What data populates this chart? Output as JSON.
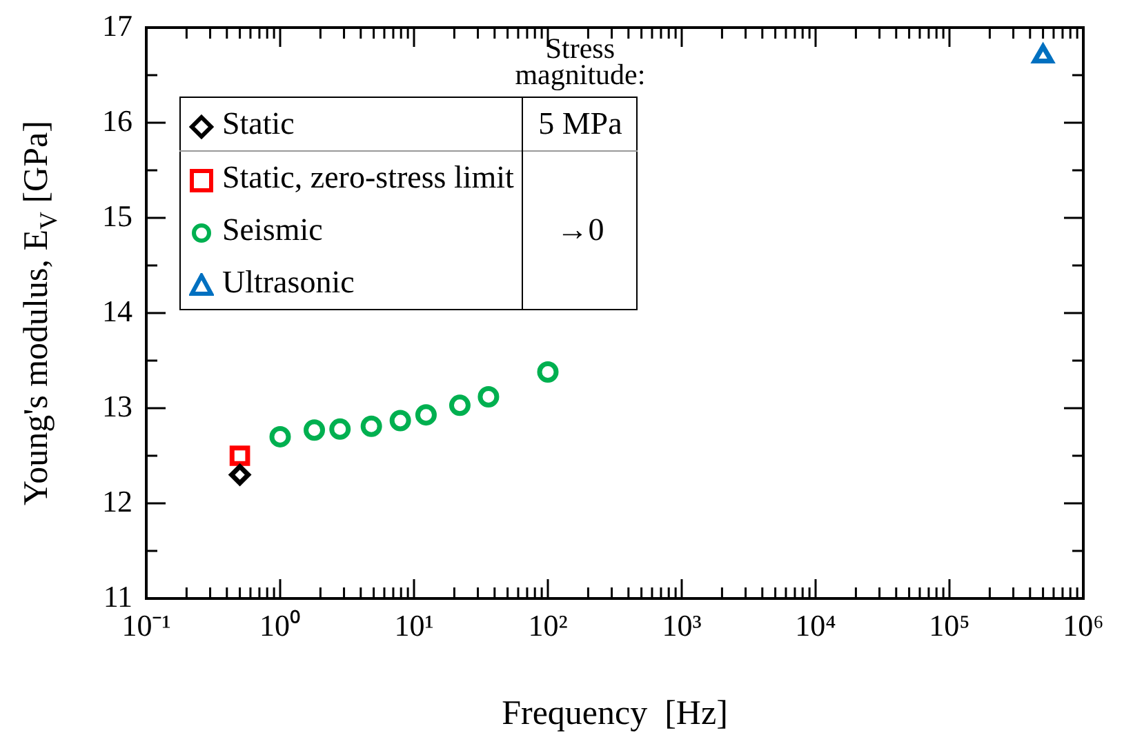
{
  "chart_data": {
    "type": "scatter",
    "xlabel": "Frequency  [Hz]",
    "ylabel": "Young's modulus, E$_{V}$ [GPa]",
    "log": "x",
    "xlim": [
      0.1,
      1000000
    ],
    "ylim": [
      11,
      17
    ],
    "xticks": [
      {
        "value": 0.1,
        "label": "10⁻¹"
      },
      {
        "value": 0.2,
        "label": null
      },
      {
        "value": 0.3,
        "label": null
      },
      {
        "value": 0.4,
        "label": null
      },
      {
        "value": 0.5,
        "label": null
      },
      {
        "value": 0.6,
        "label": null
      },
      {
        "value": 0.7,
        "label": null
      },
      {
        "value": 0.8,
        "label": null
      },
      {
        "value": 0.9,
        "label": null
      },
      {
        "value": 1,
        "label": "10⁰"
      },
      {
        "value": 2,
        "label": null
      },
      {
        "value": 3,
        "label": null
      },
      {
        "value": 4,
        "label": null
      },
      {
        "value": 5,
        "label": null
      },
      {
        "value": 6,
        "label": null
      },
      {
        "value": 7,
        "label": null
      },
      {
        "value": 8,
        "label": null
      },
      {
        "value": 9,
        "label": null
      },
      {
        "value": 10,
        "label": "10¹"
      },
      {
        "value": 20,
        "label": null
      },
      {
        "value": 30,
        "label": null
      },
      {
        "value": 40,
        "label": null
      },
      {
        "value": 50,
        "label": null
      },
      {
        "value": 60,
        "label": null
      },
      {
        "value": 70,
        "label": null
      },
      {
        "value": 80,
        "label": null
      },
      {
        "value": 90,
        "label": null
      },
      {
        "value": 100,
        "label": "10²"
      },
      {
        "value": 200,
        "label": null
      },
      {
        "value": 300,
        "label": null
      },
      {
        "value": 400,
        "label": null
      },
      {
        "value": 500,
        "label": null
      },
      {
        "value": 600,
        "label": null
      },
      {
        "value": 700,
        "label": null
      },
      {
        "value": 800,
        "label": null
      },
      {
        "value": 900,
        "label": null
      },
      {
        "value": 1000,
        "label": "10³"
      },
      {
        "value": 2000,
        "label": null
      },
      {
        "value": 3000,
        "label": null
      },
      {
        "value": 4000,
        "label": null
      },
      {
        "value": 5000,
        "label": null
      },
      {
        "value": 6000,
        "label": null
      },
      {
        "value": 7000,
        "label": null
      },
      {
        "value": 8000,
        "label": null
      },
      {
        "value": 9000,
        "label": null
      },
      {
        "value": 10000,
        "label": "10⁴"
      },
      {
        "value": 20000,
        "label": null
      },
      {
        "value": 30000,
        "label": null
      },
      {
        "value": 40000,
        "label": null
      },
      {
        "value": 50000,
        "label": null
      },
      {
        "value": 60000,
        "label": null
      },
      {
        "value": 70000,
        "label": null
      },
      {
        "value": 80000,
        "label": null
      },
      {
        "value": 90000,
        "label": null
      },
      {
        "value": 100000,
        "label": "10⁵"
      },
      {
        "value": 200000,
        "label": null
      },
      {
        "value": 300000,
        "label": null
      },
      {
        "value": 400000,
        "label": null
      },
      {
        "value": 500000,
        "label": null
      },
      {
        "value": 600000,
        "label": null
      },
      {
        "value": 700000,
        "label": null
      },
      {
        "value": 800000,
        "label": null
      },
      {
        "value": 900000,
        "label": null
      },
      {
        "value": 1000000,
        "label": "10⁶"
      }
    ],
    "yticks": [
      11,
      {
        "value": 11.5,
        "label": null
      },
      12,
      {
        "value": 12.5,
        "label": null
      },
      13,
      {
        "value": 13.5,
        "label": null
      },
      14,
      {
        "value": 14.5,
        "label": null
      },
      15,
      {
        "value": 15.5,
        "label": null
      },
      16,
      {
        "value": 16.5,
        "label": null
      },
      17
    ],
    "grid": false,
    "legend": "top left",
    "legend_title": "Stress magnitude:",
    "series": [
      {
        "name": "Static",
        "color": "#000000",
        "marker": "diamond",
        "x": [
          0.5
        ],
        "values": [
          12.3
        ]
      },
      {
        "name": "Static, zero-stress limit",
        "color": "#ff0000",
        "marker": "square",
        "x": [
          0.5
        ],
        "values": [
          12.5
        ]
      },
      {
        "name": "Seismic",
        "color": "#00b050",
        "marker": "circle",
        "x": [
          1.0,
          1.8,
          2.8,
          4.8,
          7.9,
          12.3,
          22,
          36,
          100
        ],
        "values": [
          12.7,
          12.77,
          12.78,
          12.81,
          12.87,
          12.93,
          13.03,
          13.12,
          13.38
        ]
      },
      {
        "name": "Ultrasonic",
        "color": "#0070c0",
        "marker": "triangle",
        "x": [
          500000
        ],
        "values": [
          16.7
        ]
      }
    ],
    "annotations": [
      "5 MPa",
      "→0"
    ]
  }
}
